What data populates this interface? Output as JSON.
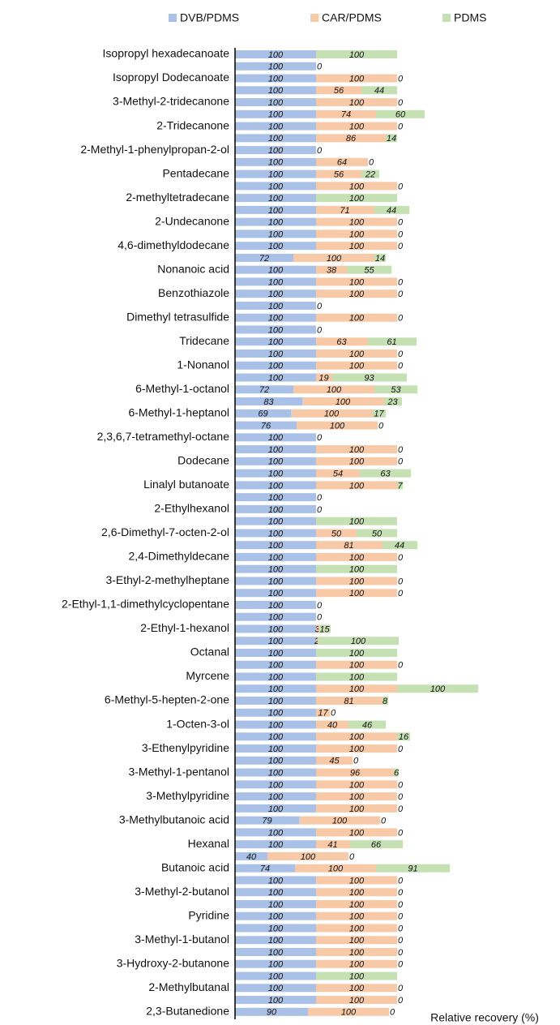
{
  "chart_data": {
    "type": "stacked-barh",
    "x_label": "Relative recovery (%)",
    "xlim": [
      0,
      400
    ],
    "categories": [
      "Isopropyl hexadecanoate",
      null,
      "Isopropyl Dodecanoate",
      null,
      "3-Methyl-2-tridecanone",
      null,
      "2-Tridecanone",
      null,
      "2-Methyl-1-phenylpropan-2-ol",
      null,
      "Pentadecane",
      null,
      "2-methyltetradecane",
      null,
      "2-Undecanone",
      null,
      "4,6-dimethyldodecane",
      null,
      "Nonanoic acid",
      null,
      "Benzothiazole",
      null,
      "Dimethyl tetrasulfide",
      null,
      "Tridecane",
      null,
      "1-Nonanol",
      null,
      "6-Methyl-1-octanol",
      null,
      "6-Methyl-1-heptanol",
      null,
      "2,3,6,7-tetramethyl-octane",
      null,
      "Dodecane",
      null,
      "Linalyl butanoate",
      null,
      "2-Ethylhexanol",
      null,
      "2,6-Dimethyl-7-octen-2-ol",
      null,
      "2,4-Dimethyldecane",
      null,
      "3-Ethyl-2-methylheptane",
      null,
      "2-Ethyl-1,1-dimethylcyclopentane",
      null,
      "2-Ethyl-1-hexanol",
      null,
      "Octanal",
      null,
      "Myrcene",
      null,
      "6-Methyl-5-hepten-2-one",
      null,
      "1-Octen-3-ol",
      null,
      "3-Ethenylpyridine",
      null,
      "3-Methyl-1-pentanol",
      null,
      "3-Methylpyridine",
      null,
      "3-Methylbutanoic acid",
      null,
      "Hexanal",
      null,
      "Butanoic acid",
      null,
      "3-Methyl-2-butanol",
      null,
      "Pyridine",
      null,
      "3-Methyl-1-butanol",
      null,
      "3-Hydroxy-2-butanone",
      null,
      "2-Methylbutanal",
      null,
      "2,3-Butanedione"
    ],
    "series": [
      {
        "name": "DVB/PDMS",
        "color": "#a9c1e6",
        "values": [
          100,
          100,
          100,
          100,
          100,
          100,
          100,
          100,
          100,
          100,
          100,
          100,
          100,
          100,
          100,
          100,
          100,
          72,
          100,
          100,
          100,
          100,
          100,
          100,
          100,
          100,
          100,
          100,
          72,
          83,
          69,
          76,
          100,
          100,
          100,
          100,
          100,
          100,
          100,
          100,
          100,
          100,
          100,
          100,
          100,
          100,
          100,
          100,
          100,
          100,
          100,
          100,
          100,
          100,
          100,
          100,
          100,
          100,
          100,
          100,
          100,
          100,
          100,
          100,
          79,
          100,
          100,
          40,
          74,
          100,
          100,
          100,
          100,
          100,
          100,
          100,
          100,
          100,
          100,
          100,
          90
        ]
      },
      {
        "name": "CAR/PDMS",
        "color": "#f8c9a6",
        "values": [
          0,
          0,
          100,
          56,
          100,
          74,
          100,
          86,
          0,
          64,
          56,
          100,
          0,
          71,
          100,
          100,
          100,
          100,
          38,
          100,
          100,
          0,
          100,
          0,
          63,
          100,
          100,
          19,
          100,
          100,
          100,
          100,
          0,
          100,
          100,
          54,
          100,
          0,
          0,
          0,
          50,
          81,
          100,
          0,
          100,
          100,
          0,
          0,
          3,
          2,
          0,
          100,
          0,
          100,
          81,
          17,
          40,
          100,
          100,
          45,
          96,
          100,
          100,
          100,
          100,
          100,
          41,
          100,
          100,
          100,
          100,
          100,
          100,
          100,
          100,
          100,
          100,
          0,
          100,
          100,
          100
        ]
      },
      {
        "name": "PDMS",
        "color": "#c5e0b3",
        "values": [
          100,
          null,
          0,
          44,
          0,
          60,
          0,
          14,
          null,
          0,
          22,
          0,
          100,
          44,
          0,
          0,
          0,
          14,
          55,
          0,
          0,
          null,
          0,
          null,
          61,
          0,
          0,
          93,
          53,
          23,
          17,
          0,
          null,
          0,
          0,
          63,
          7,
          null,
          null,
          100,
          50,
          44,
          0,
          100,
          0,
          0,
          null,
          null,
          15,
          100,
          100,
          0,
          100,
          100,
          8,
          0,
          46,
          16,
          0,
          0,
          6,
          0,
          0,
          0,
          0,
          0,
          66,
          0,
          91,
          0,
          0,
          0,
          0,
          0,
          0,
          0,
          0,
          100,
          0,
          0,
          0
        ]
      }
    ]
  }
}
